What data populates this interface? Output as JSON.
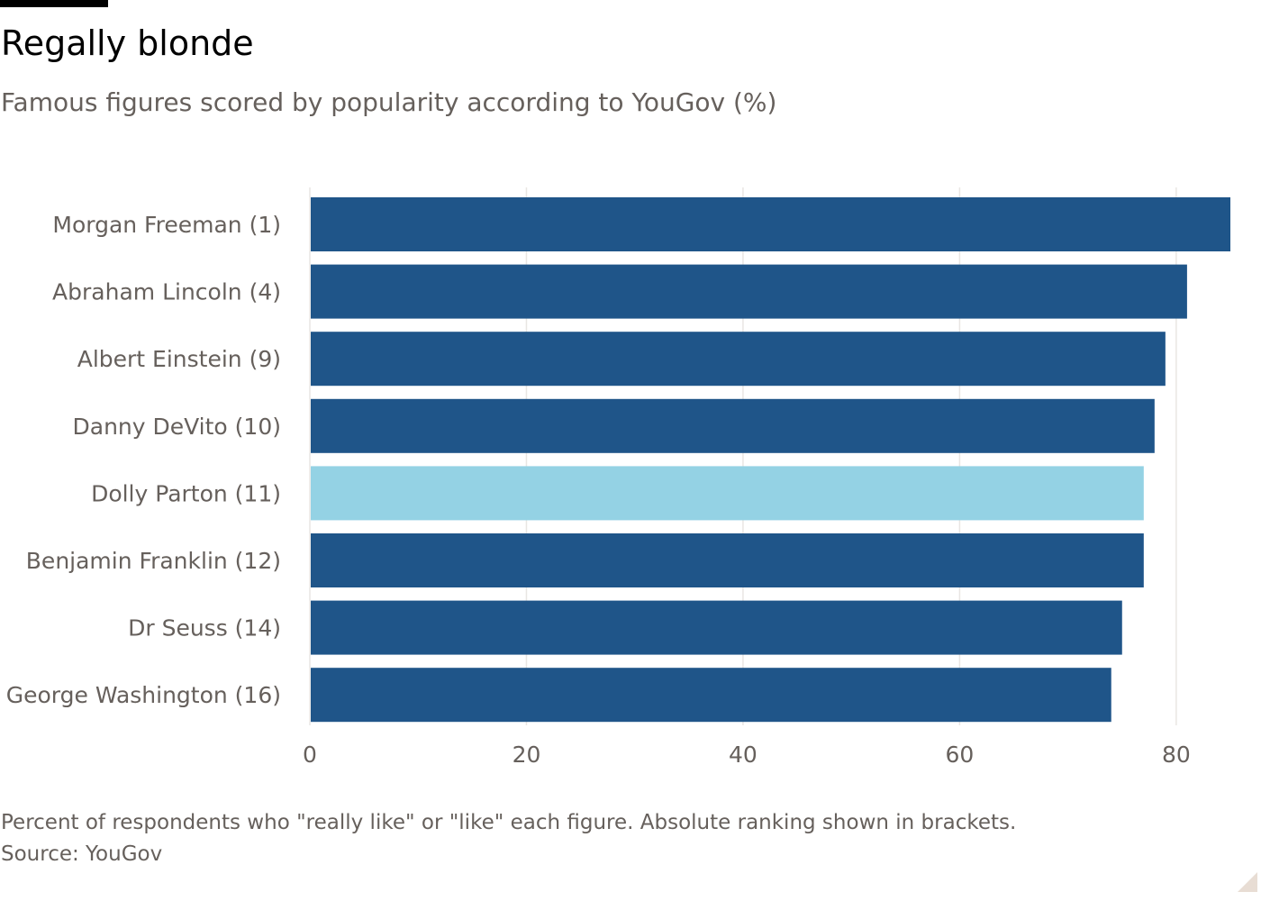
{
  "header": {
    "title": "Regally blonde",
    "subtitle": "Famous figures scored by popularity according to YouGov (%)"
  },
  "footer": {
    "note": "Percent of respondents who \"really like\" or \"like\" each figure. Absolute ranking shown in brackets.",
    "source": "Source: YouGov"
  },
  "colors": {
    "bar": "#1f5589",
    "highlight": "#94d2e4",
    "grid": "#e9e6e3",
    "label": "#66605c"
  },
  "chart_data": {
    "type": "bar",
    "orientation": "horizontal",
    "title": "Regally blonde",
    "subtitle": "Famous figures scored by popularity according to YouGov (%)",
    "categories": [
      "Morgan Freeman (1)",
      "Abraham Lincoln (4)",
      "Albert Einstein (9)",
      "Danny DeVito (10)",
      "Dolly Parton (11)",
      "Benjamin Franklin (12)",
      "Dr Seuss (14)",
      "George Washington (16)"
    ],
    "values": [
      85,
      81,
      79,
      78,
      77,
      77,
      75,
      74
    ],
    "highlight_index": 4,
    "xlim": [
      0,
      85
    ],
    "xticks": [
      0,
      20,
      40,
      60,
      80
    ],
    "xlabel": "",
    "ylabel": "",
    "grid": true
  }
}
